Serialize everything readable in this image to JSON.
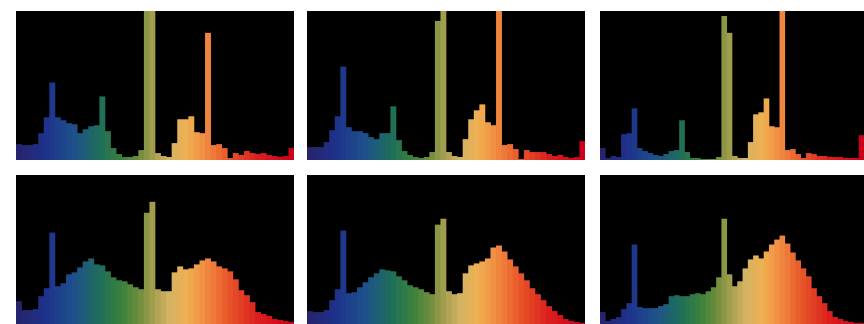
{
  "chart_data": [
    {
      "type": "bar",
      "grid": false,
      "ylim": [
        0,
        150
      ],
      "values": [
        16,
        15,
        15,
        16,
        27,
        43,
        78,
        43,
        40,
        37,
        36,
        27,
        31,
        34,
        35,
        64,
        29,
        12,
        6,
        3,
        3,
        4,
        10,
        150,
        150,
        7,
        4,
        3,
        17,
        41,
        41,
        44,
        28,
        27,
        128,
        15,
        16,
        12,
        2,
        7,
        5,
        9,
        7,
        6,
        7,
        5,
        4,
        3,
        4,
        12
      ]
    },
    {
      "type": "bar",
      "grid": false,
      "ylim": [
        0,
        150
      ],
      "values": [
        13,
        13,
        13,
        18,
        30,
        44,
        94,
        33,
        29,
        29,
        27,
        23,
        21,
        27,
        27,
        54,
        20,
        9,
        5,
        3,
        2,
        3,
        8,
        140,
        150,
        8,
        4,
        3,
        21,
        41,
        50,
        56,
        38,
        35,
        150,
        15,
        16,
        11,
        1,
        10,
        8,
        8,
        8,
        6,
        4,
        5,
        3,
        2,
        3,
        19
      ]
    },
    {
      "type": "bar",
      "grid": false,
      "ylim": [
        0,
        150
      ],
      "values": [
        12,
        2,
        4,
        3,
        26,
        27,
        52,
        12,
        9,
        7,
        5,
        4,
        6,
        9,
        10,
        40,
        8,
        2,
        2,
        1,
        1,
        1,
        3,
        145,
        128,
        4,
        2,
        2,
        18,
        46,
        48,
        62,
        34,
        33,
        150,
        10,
        11,
        6,
        2,
        7,
        6,
        4,
        4,
        3,
        3,
        3,
        2,
        2,
        2,
        25
      ]
    },
    {
      "type": "bar",
      "grid": false,
      "ylim": [
        0,
        150
      ],
      "values": [
        23,
        14,
        14,
        15,
        28,
        36,
        92,
        38,
        41,
        50,
        52,
        57,
        63,
        66,
        60,
        59,
        53,
        47,
        44,
        43,
        40,
        37,
        35,
        112,
        123,
        35,
        33,
        33,
        52,
        58,
        55,
        56,
        60,
        64,
        66,
        63,
        58,
        56,
        53,
        45,
        34,
        29,
        22,
        12,
        10,
        8,
        5,
        4,
        3,
        2
      ]
    },
    {
      "type": "bar",
      "grid": false,
      "ylim": [
        0,
        150
      ],
      "values": [
        13,
        12,
        12,
        14,
        24,
        35,
        94,
        31,
        32,
        37,
        42,
        47,
        51,
        55,
        54,
        53,
        48,
        44,
        39,
        37,
        35,
        32,
        30,
        100,
        106,
        33,
        30,
        31,
        51,
        59,
        61,
        63,
        66,
        77,
        79,
        73,
        65,
        58,
        51,
        44,
        36,
        30,
        24,
        18,
        13,
        9,
        5,
        3,
        2,
        1
      ]
    },
    {
      "type": "bar",
      "grid": false,
      "ylim": [
        0,
        150
      ],
      "values": [
        12,
        3,
        5,
        7,
        15,
        21,
        80,
        17,
        16,
        16,
        16,
        18,
        20,
        28,
        29,
        28,
        28,
        30,
        31,
        30,
        33,
        37,
        47,
        106,
        50,
        38,
        43,
        56,
        65,
        69,
        66,
        73,
        80,
        85,
        89,
        81,
        72,
        64,
        56,
        48,
        36,
        28,
        21,
        13,
        7,
        5,
        3,
        2,
        1,
        1
      ]
    }
  ]
}
